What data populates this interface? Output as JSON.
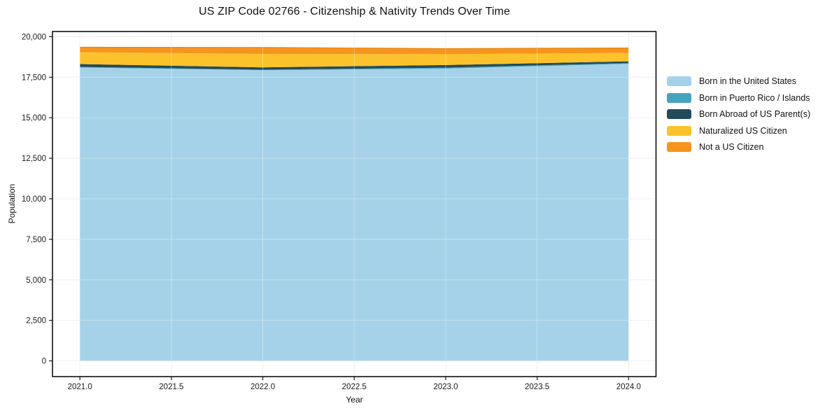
{
  "chart_data": {
    "type": "area",
    "stacked": true,
    "title": "US ZIP Code 02766 - Citizenship & Nativity Trends Over Time",
    "xlabel": "Year",
    "ylabel": "Population",
    "x": [
      2021,
      2022,
      2023,
      2024
    ],
    "series": [
      {
        "name": "Born in the United States",
        "color": "#A5D2E8",
        "values": [
          18100,
          17930,
          18030,
          18330
        ]
      },
      {
        "name": "Born in Puerto Rico / Islands",
        "color": "#45A3BD",
        "values": [
          40,
          30,
          60,
          40
        ]
      },
      {
        "name": "Born Abroad of US Parent(s)",
        "color": "#234B5A",
        "values": [
          170,
          150,
          160,
          110
        ]
      },
      {
        "name": "Naturalized US Citizen",
        "color": "#FCC22B",
        "values": [
          730,
          830,
          670,
          520
        ]
      },
      {
        "name": "Not a US Citizen",
        "color": "#F6941E",
        "values": [
          310,
          390,
          340,
          300
        ]
      }
    ],
    "stack_totals": [
      19350,
      19330,
      19260,
      19300
    ],
    "xlim": [
      2020.85,
      2024.15
    ],
    "ylim": [
      -970,
      20320
    ],
    "xticks": {
      "values": [
        2021,
        2021.5,
        2022,
        2022.5,
        2023,
        2023.5,
        2024
      ],
      "labels": [
        "2021.0",
        "2021.5",
        "2022.0",
        "2022.5",
        "2023.0",
        "2023.5",
        "2024.0"
      ]
    },
    "yticks": {
      "values": [
        0,
        2500,
        5000,
        7500,
        10000,
        12500,
        15000,
        17500,
        20000
      ],
      "labels": [
        "0",
        "2,500",
        "5,000",
        "7,500",
        "10,000",
        "12,500",
        "15,000",
        "17,500",
        "20,000"
      ]
    },
    "grid": true,
    "legend_position": "right-outside",
    "colors": {
      "grid": "#e8e8e8",
      "grid_overlay": "rgba(255,255,255,0.35)",
      "spine": "#000000",
      "tick": "#1a1a1a",
      "text": "#1a1a1a",
      "stack_top_edge": "#E8860F"
    }
  }
}
